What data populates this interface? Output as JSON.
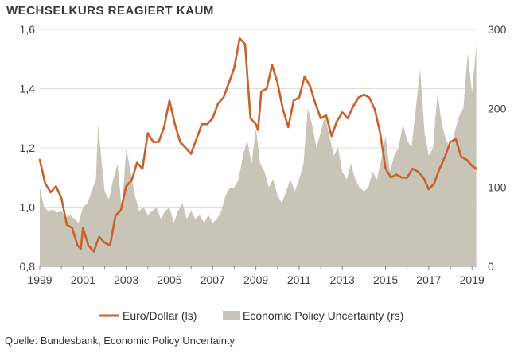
{
  "title": "WECHSELKURS REAGIERT KAUM",
  "source": "Quelle: Bundesbank, Economic Policy Uncertainty",
  "colors": {
    "euro": "#c8622a",
    "epu": "#c9c4b8",
    "grid": "#dddddd",
    "axis": "#888888"
  },
  "chart_data": {
    "type": "line",
    "title": "WECHSELKURS REAGIERT KAUM",
    "x_label": "",
    "x_range": [
      1999,
      2019.25
    ],
    "x_ticks": [
      "1999",
      "2001",
      "2003",
      "2005",
      "2007",
      "2009",
      "2011",
      "2013",
      "2015",
      "2017",
      "2019"
    ],
    "y_left": {
      "range": [
        0.8,
        1.6
      ],
      "ticks": [
        "0,8",
        "1,0",
        "1,2",
        "1,4",
        "1,6"
      ]
    },
    "y_right": {
      "range": [
        0,
        300
      ],
      "ticks": [
        "0",
        "100",
        "200",
        "300"
      ]
    },
    "grid": true,
    "legend_position": "bottom",
    "series": [
      {
        "name": "Euro/Dollar (ls)",
        "axis": "left",
        "type": "line",
        "color": "#c8622a",
        "x": [
          1999.0,
          1999.25,
          1999.5,
          1999.75,
          2000.0,
          2000.25,
          2000.5,
          2000.75,
          2000.9,
          2001.0,
          2001.25,
          2001.5,
          2001.75,
          2002.0,
          2002.25,
          2002.5,
          2002.75,
          2003.0,
          2003.25,
          2003.5,
          2003.75,
          2004.0,
          2004.25,
          2004.5,
          2004.75,
          2005.0,
          2005.25,
          2005.5,
          2005.75,
          2006.0,
          2006.25,
          2006.5,
          2006.75,
          2007.0,
          2007.25,
          2007.5,
          2007.75,
          2008.0,
          2008.25,
          2008.5,
          2008.75,
          2009.0,
          2009.1,
          2009.25,
          2009.5,
          2009.75,
          2010.0,
          2010.25,
          2010.5,
          2010.75,
          2011.0,
          2011.25,
          2011.5,
          2011.75,
          2012.0,
          2012.25,
          2012.5,
          2012.75,
          2013.0,
          2013.25,
          2013.5,
          2013.75,
          2014.0,
          2014.25,
          2014.5,
          2014.75,
          2015.0,
          2015.25,
          2015.5,
          2015.75,
          2016.0,
          2016.25,
          2016.5,
          2016.75,
          2017.0,
          2017.25,
          2017.5,
          2017.75,
          2018.0,
          2018.25,
          2018.5,
          2018.75,
          2019.0,
          2019.2
        ],
        "values": [
          1.16,
          1.08,
          1.05,
          1.07,
          1.03,
          0.94,
          0.93,
          0.87,
          0.86,
          0.93,
          0.87,
          0.85,
          0.9,
          0.88,
          0.87,
          0.97,
          0.99,
          1.07,
          1.09,
          1.15,
          1.13,
          1.25,
          1.22,
          1.22,
          1.27,
          1.36,
          1.28,
          1.22,
          1.2,
          1.18,
          1.23,
          1.28,
          1.28,
          1.3,
          1.35,
          1.37,
          1.42,
          1.47,
          1.57,
          1.55,
          1.3,
          1.28,
          1.26,
          1.39,
          1.4,
          1.48,
          1.42,
          1.33,
          1.27,
          1.36,
          1.37,
          1.44,
          1.41,
          1.35,
          1.3,
          1.31,
          1.24,
          1.29,
          1.32,
          1.3,
          1.34,
          1.37,
          1.38,
          1.37,
          1.33,
          1.25,
          1.13,
          1.1,
          1.11,
          1.1,
          1.1,
          1.13,
          1.12,
          1.1,
          1.06,
          1.08,
          1.13,
          1.17,
          1.22,
          1.23,
          1.17,
          1.16,
          1.14,
          1.13
        ]
      },
      {
        "name": "Economic Policy Uncertainty (rs)",
        "axis": "right",
        "type": "area",
        "color": "#c9c4b8",
        "x": [
          1999.0,
          1999.2,
          1999.4,
          1999.6,
          1999.8,
          2000.0,
          2000.2,
          2000.4,
          2000.6,
          2000.8,
          2001.0,
          2001.2,
          2001.4,
          2001.6,
          2001.7,
          2001.8,
          2002.0,
          2002.2,
          2002.4,
          2002.6,
          2002.8,
          2003.0,
          2003.2,
          2003.4,
          2003.6,
          2003.8,
          2004.0,
          2004.2,
          2004.4,
          2004.6,
          2004.8,
          2005.0,
          2005.2,
          2005.4,
          2005.6,
          2005.8,
          2006.0,
          2006.2,
          2006.4,
          2006.6,
          2006.8,
          2007.0,
          2007.2,
          2007.4,
          2007.6,
          2007.8,
          2008.0,
          2008.2,
          2008.4,
          2008.6,
          2008.8,
          2009.0,
          2009.2,
          2009.4,
          2009.6,
          2009.8,
          2010.0,
          2010.2,
          2010.4,
          2010.6,
          2010.8,
          2011.0,
          2011.2,
          2011.4,
          2011.6,
          2011.8,
          2012.0,
          2012.2,
          2012.4,
          2012.6,
          2012.8,
          2013.0,
          2013.2,
          2013.4,
          2013.6,
          2013.8,
          2014.0,
          2014.2,
          2014.4,
          2014.6,
          2014.8,
          2015.0,
          2015.2,
          2015.4,
          2015.6,
          2015.8,
          2016.0,
          2016.2,
          2016.4,
          2016.6,
          2016.8,
          2017.0,
          2017.2,
          2017.4,
          2017.6,
          2017.8,
          2018.0,
          2018.2,
          2018.4,
          2018.6,
          2018.8,
          2019.0,
          2019.2
        ],
        "values": [
          100,
          75,
          70,
          72,
          68,
          70,
          62,
          65,
          60,
          55,
          75,
          80,
          95,
          110,
          180,
          150,
          95,
          85,
          110,
          130,
          70,
          150,
          120,
          90,
          70,
          75,
          65,
          70,
          75,
          60,
          70,
          75,
          55,
          70,
          80,
          60,
          70,
          60,
          65,
          55,
          65,
          55,
          60,
          70,
          90,
          100,
          100,
          110,
          140,
          160,
          130,
          175,
          130,
          120,
          100,
          110,
          90,
          80,
          95,
          110,
          95,
          110,
          130,
          200,
          180,
          150,
          170,
          190,
          165,
          140,
          150,
          120,
          110,
          130,
          110,
          100,
          95,
          100,
          120,
          110,
          135,
          165,
          120,
          140,
          150,
          180,
          160,
          150,
          200,
          250,
          170,
          140,
          150,
          220,
          180,
          160,
          150,
          170,
          190,
          200,
          270,
          220,
          280
        ]
      }
    ]
  },
  "legend": [
    {
      "label": "Euro/Dollar (ls)",
      "type": "line"
    },
    {
      "label": "Economic Policy Uncertainty (rs)",
      "type": "area"
    }
  ]
}
